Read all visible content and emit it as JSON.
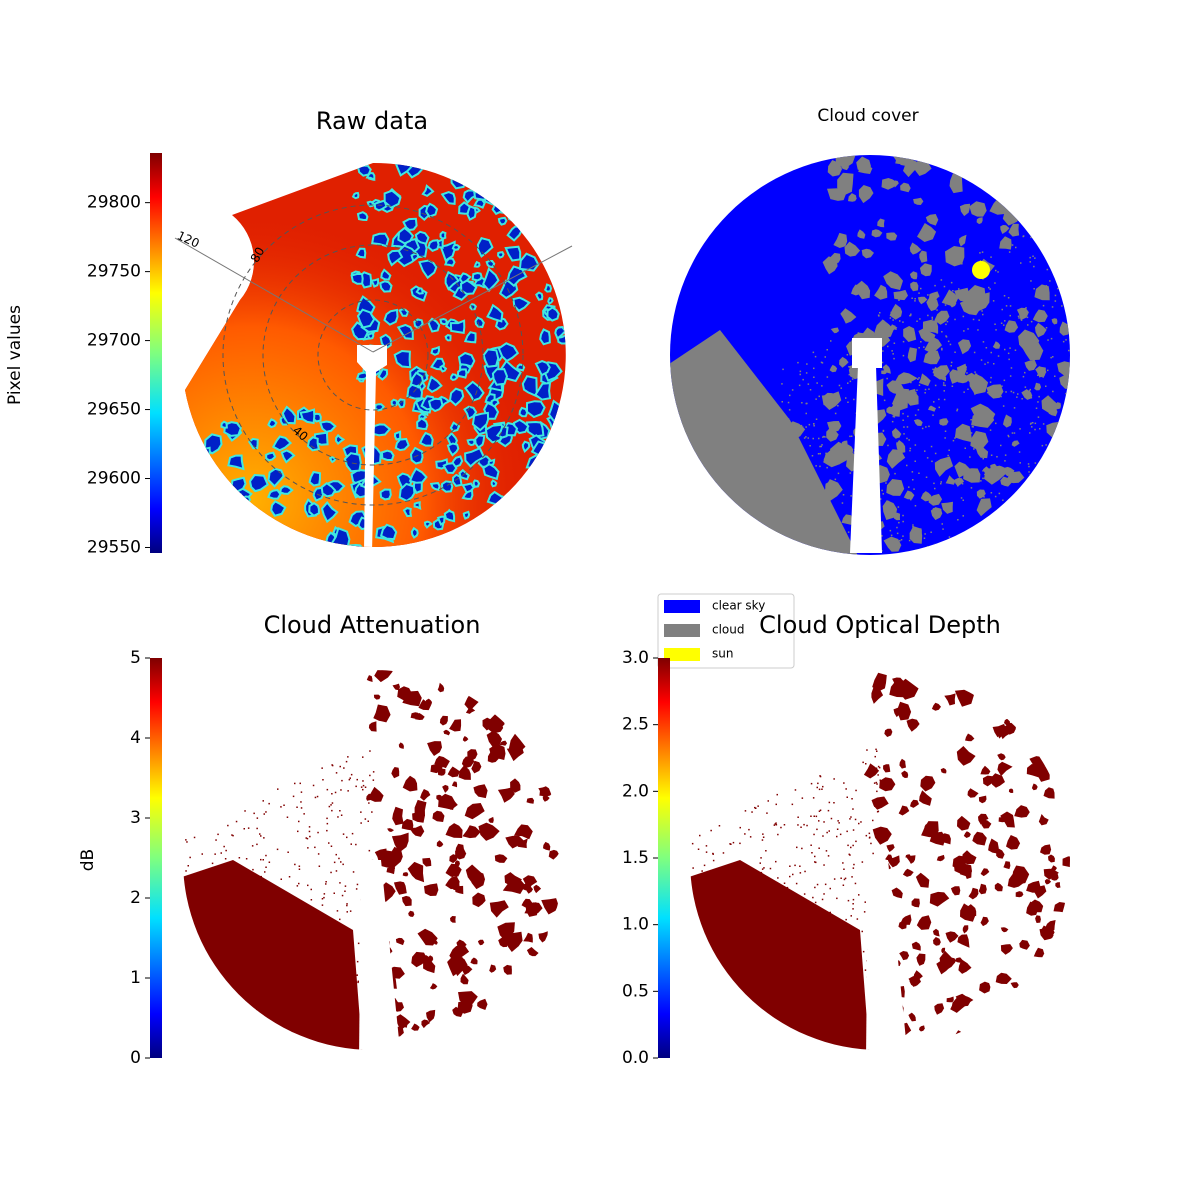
{
  "chart_data": [
    {
      "type": "image",
      "title": "Raw data",
      "colorbar_label": "Pixel values",
      "colormap": "jet",
      "clim": [
        29546,
        29836
      ],
      "cticks": [
        29550,
        29600,
        29650,
        29700,
        29750,
        29800
      ],
      "annotations": [
        "120",
        "80",
        "40"
      ]
    },
    {
      "type": "image",
      "title": "Cloud cover",
      "legend": [
        {
          "name": "clear sky",
          "color": "#0000ff"
        },
        {
          "name": "cloud",
          "color": "#808080"
        },
        {
          "name": "sun",
          "color": "#ffff00"
        }
      ]
    },
    {
      "type": "image",
      "title": "Cloud Attenuation",
      "colorbar_label": "dB",
      "colormap": "jet",
      "clim": [
        0,
        5
      ],
      "cticks": [
        0,
        1,
        2,
        3,
        4,
        5
      ]
    },
    {
      "type": "image",
      "title": "Cloud Optical Depth",
      "colormap": "jet",
      "clim": [
        0,
        3
      ],
      "cticks": [
        {
          "value": 0,
          "label": "0.0"
        },
        0.5,
        {
          "value": 1,
          "label": "1.0"
        },
        1.5,
        {
          "value": 2,
          "label": "2.0"
        },
        2.5,
        {
          "value": 3,
          "label": "3.0"
        }
      ]
    }
  ]
}
